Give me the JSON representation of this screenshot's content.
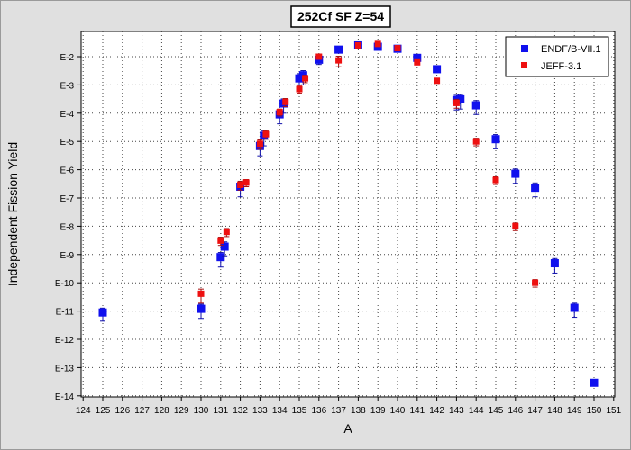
{
  "chart_data": {
    "type": "scatter",
    "title": "252Cf SF Z=54",
    "xlabel": "A",
    "ylabel": "Independent Fission Yield",
    "xlim": [
      124,
      151
    ],
    "ylim": [
      -14,
      -1.5
    ],
    "y_scale": "log",
    "x_tick_labels": [
      "124",
      "125",
      "126",
      "127",
      "128",
      "129",
      "130",
      "131",
      "132",
      "133",
      "134",
      "135",
      "136",
      "137",
      "138",
      "139",
      "140",
      "141",
      "142",
      "143",
      "144",
      "145",
      "146",
      "147",
      "148",
      "149",
      "150",
      "151"
    ],
    "y_tick_labels": [
      "E-2",
      "E-3",
      "E-4",
      "E-5",
      "E-6",
      "E-7",
      "E-8",
      "E-9",
      "E-10",
      "E-11",
      "E-12",
      "E-13",
      "E-14"
    ],
    "y_tick_exponents": [
      -2,
      -3,
      -4,
      -5,
      -6,
      -7,
      -8,
      -9,
      -10,
      -11,
      -12,
      -13,
      -14
    ],
    "grid": true,
    "legend_position": "top-right",
    "series": [
      {
        "name": "ENDF/B-VII.1",
        "color": "#1010ee",
        "marker": "square",
        "points": [
          {
            "x": 125,
            "y": 8.9e-12,
            "err_up": 3.8e-12,
            "err_down": 4.5e-12
          },
          {
            "x": 130,
            "y": 1.2e-11,
            "err_up": 5.5e-12,
            "err_down": 6.5e-12
          },
          {
            "x": 131,
            "y": 8.1e-10,
            "err_up": 3.7e-10,
            "err_down": 4.5e-10
          },
          {
            "x": 131.2,
            "y": 1.9e-09,
            "err_up": 9e-10,
            "err_down": 1e-09
          },
          {
            "x": 132,
            "y": 2.5e-07,
            "err_up": 1.2e-07,
            "err_down": 1.4e-07
          },
          {
            "x": 133,
            "y": 6.9e-06,
            "err_up": 3.3e-06,
            "err_down": 3.8e-06
          },
          {
            "x": 133.2,
            "y": 1.6e-05,
            "err_up": 8e-06,
            "err_down": 9e-06
          },
          {
            "x": 134,
            "y": 9.1e-05,
            "err_up": 4.2e-05,
            "err_down": 4.9e-05
          },
          {
            "x": 134.2,
            "y": 0.00022,
            "err_up": 0.0001,
            "err_down": 0.00012
          },
          {
            "x": 135,
            "y": 0.0017,
            "err_up": 0.0008,
            "err_down": 0.0009
          },
          {
            "x": 135.2,
            "y": 0.0022,
            "err_up": 0.001,
            "err_down": 0.0012
          },
          {
            "x": 136,
            "y": 0.0078,
            "err_up": 0.0025,
            "err_down": 0.0025
          },
          {
            "x": 137,
            "y": 0.0178
          },
          {
            "x": 138,
            "y": 0.0251
          },
          {
            "x": 139,
            "y": 0.0224
          },
          {
            "x": 140,
            "y": 0.0191
          },
          {
            "x": 141,
            "y": 0.0091
          },
          {
            "x": 142,
            "y": 0.0036
          },
          {
            "x": 143,
            "y": 0.00029,
            "err_up": 0.00014,
            "err_down": 0.00016
          },
          {
            "x": 143.2,
            "y": 0.00031,
            "err_up": 0.00015,
            "err_down": 0.00017
          },
          {
            "x": 144,
            "y": 0.00019,
            "err_up": 9e-05,
            "err_down": 0.0001
          },
          {
            "x": 145,
            "y": 1.2e-05,
            "err_up": 5.5e-06,
            "err_down": 6.5e-06
          },
          {
            "x": 146,
            "y": 7.2e-07,
            "err_up": 3.4e-07,
            "err_down": 3.9e-07
          },
          {
            "x": 147,
            "y": 2.3e-07,
            "err_up": 1.1e-07,
            "err_down": 1.2e-07
          },
          {
            "x": 148,
            "y": 4.9e-10,
            "err_up": 2.3e-10,
            "err_down": 2.7e-10
          },
          {
            "x": 149,
            "y": 1.3e-11,
            "err_up": 6e-12,
            "err_down": 7e-12
          },
          {
            "x": 150,
            "y": 2.9e-14
          }
        ]
      },
      {
        "name": "JEFF-3.1",
        "color": "#ee1010",
        "marker": "square",
        "points": [
          {
            "x": 130,
            "y": 4.1e-11,
            "err_up": 1.9e-11,
            "err_down": 2.2e-11
          },
          {
            "x": 131,
            "y": 3.1e-09,
            "err_up": 1e-09,
            "err_down": 1e-09
          },
          {
            "x": 131.3,
            "y": 6.3e-09,
            "err_up": 2e-09,
            "err_down": 2e-09
          },
          {
            "x": 132,
            "y": 2.9e-07,
            "err_up": 1e-07,
            "err_down": 1e-07
          },
          {
            "x": 132.3,
            "y": 3.5e-07,
            "err_up": 1e-07,
            "err_down": 1e-07
          },
          {
            "x": 133,
            "y": 8.3e-06,
            "err_up": 3e-06,
            "err_down": 3e-06
          },
          {
            "x": 133.3,
            "y": 1.8e-05,
            "err_up": 6e-06,
            "err_down": 6e-06
          },
          {
            "x": 134,
            "y": 0.00011,
            "err_up": 3e-05,
            "err_down": 3e-05
          },
          {
            "x": 134.3,
            "y": 0.00025,
            "err_up": 8e-05,
            "err_down": 8e-05
          },
          {
            "x": 135,
            "y": 0.00071,
            "err_up": 0.0002,
            "err_down": 0.0002
          },
          {
            "x": 135.3,
            "y": 0.0017,
            "err_up": 0.0005,
            "err_down": 0.0005
          },
          {
            "x": 136,
            "y": 0.01
          },
          {
            "x": 137,
            "y": 0.0074,
            "err_up": 0.003,
            "err_down": 0.003
          },
          {
            "x": 138,
            "y": 0.0251
          },
          {
            "x": 139,
            "y": 0.0282
          },
          {
            "x": 140,
            "y": 0.02
          },
          {
            "x": 141,
            "y": 0.0063
          },
          {
            "x": 142,
            "y": 0.0014
          },
          {
            "x": 143,
            "y": 0.00023,
            "err_up": 8e-05,
            "err_down": 8e-05
          },
          {
            "x": 144,
            "y": 1e-05,
            "err_up": 3e-06,
            "err_down": 3e-06
          },
          {
            "x": 145,
            "y": 4.3e-07,
            "err_up": 1.3e-07,
            "err_down": 1.3e-07
          },
          {
            "x": 146,
            "y": 1e-08,
            "err_up": 3e-09,
            "err_down": 3e-09
          },
          {
            "x": 147,
            "y": 1e-10,
            "err_up": 3e-11,
            "err_down": 3e-11
          }
        ]
      }
    ]
  }
}
